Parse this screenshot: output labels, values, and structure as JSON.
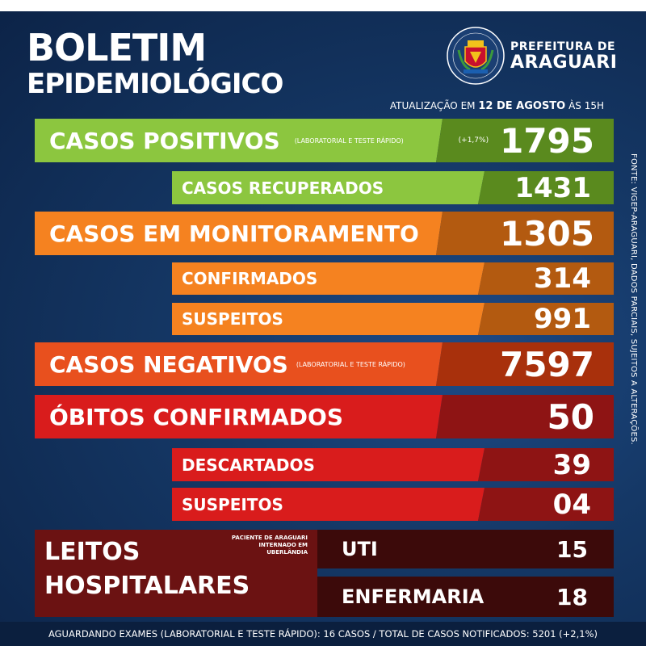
{
  "header": {
    "title_line1": "BOLETIM",
    "title_line2": "EPIDEMIOLÓGICO",
    "org_line1": "PREFEITURA DE",
    "org_line2": "ARAGUARI",
    "update_prefix": "ATUALIZAÇÃO EM",
    "update_date": "12 DE AGOSTO",
    "update_suffix": "ÀS 15H"
  },
  "colors": {
    "green": "#8cc63f",
    "green_dark": "#5a8a1e",
    "orange": "#f58220",
    "orange_dark": "#b35a10",
    "red_orange": "#e8501e",
    "red": "#d91c1c",
    "red_dark": "#8e1414",
    "maroon": "#6b1212",
    "maroon_dark": "#3c0a0a"
  },
  "rows": {
    "positivos": {
      "label": "CASOS POSITIVOS",
      "note": "(LABORATORIAL E TESTE RÁPIDO)",
      "delta": "(+1,7%)",
      "value": "1795"
    },
    "recuperados": {
      "label": "CASOS RECUPERADOS",
      "value": "1431"
    },
    "monitoramento": {
      "label": "CASOS EM MONITORAMENTO",
      "value": "1305"
    },
    "confirmados": {
      "label": "CONFIRMADOS",
      "value": "314"
    },
    "suspeitos": {
      "label": "SUSPEITOS",
      "value": "991"
    },
    "negativos": {
      "label": "CASOS NEGATIVOS",
      "note": "(LABORATORIAL E TESTE RÁPIDO)",
      "value": "7597"
    },
    "obitos": {
      "label": "ÓBITOS CONFIRMADOS",
      "value": "50"
    },
    "descartados": {
      "label": "DESCARTADOS",
      "value": "39"
    },
    "obitos_suspeitos": {
      "label": "SUSPEITOS",
      "value": "04"
    }
  },
  "leitos": {
    "title_line1": "LEITOS",
    "title_line2": "HOSPITALARES",
    "note_line1": "PACIENTE DE ARAGUARI",
    "note_line2": "INTERNADO EM",
    "note_line3": "UBERLÂNDIA",
    "uti_label": "UTI",
    "uti_value": "15",
    "enfermaria_label": "ENFERMARIA",
    "enfermaria_value": "18"
  },
  "side_note": "FONTE: VIGEP-ARAGUARI, DADOS PARCIAIS, SUJEITOS A ALTERAÇÕES.",
  "footer": "AGUARDANDO EXAMES (LABORATORIAL E TESTE RÁPIDO): 16 CASOS   /   TOTAL DE CASOS NOTIFICADOS: 5201 (+2,1%)"
}
